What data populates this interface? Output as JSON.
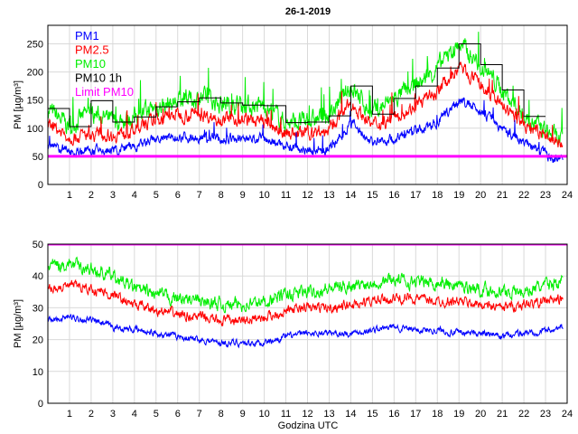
{
  "chart_data": [
    {
      "type": "line",
      "title": "26-1-2019",
      "ylabel": "PM [µg/m³]",
      "xlabel": "",
      "xlim": [
        0,
        24
      ],
      "ylim": [
        0,
        283
      ],
      "xticks": [
        1,
        2,
        3,
        4,
        5,
        6,
        7,
        8,
        9,
        10,
        11,
        12,
        13,
        14,
        15,
        16,
        17,
        18,
        19,
        20,
        21,
        22,
        23,
        24
      ],
      "yticks": [
        0,
        50,
        100,
        150,
        200,
        250
      ],
      "legend_position": "top-left",
      "series": [
        {
          "name": "PM1",
          "color": "#0000ff",
          "hourly_mean": [
            70,
            58,
            60,
            60,
            65,
            80,
            85,
            85,
            80,
            80,
            80,
            70,
            62,
            60,
            110,
            75,
            80,
            95,
            110,
            150,
            130,
            100,
            75,
            55
          ],
          "noise": 14
        },
        {
          "name": "PM2.5",
          "color": "#ff0000",
          "hourly_mean": [
            108,
            85,
            88,
            88,
            95,
            115,
            125,
            125,
            118,
            115,
            112,
            92,
            90,
            95,
            145,
            105,
            120,
            140,
            165,
            210,
            175,
            140,
            105,
            85
          ],
          "noise": 18
        },
        {
          "name": "PM10",
          "color": "#00ee00",
          "hourly_mean": [
            133,
            103,
            130,
            111,
            120,
            138,
            147,
            154,
            145,
            141,
            140,
            110,
            111,
            122,
            175,
            125,
            153,
            175,
            207,
            250,
            213,
            168,
            121,
            95
          ],
          "noise": 26
        },
        {
          "name": "PM10 1h",
          "color": "#000000",
          "step": true,
          "values": [
            135,
            103,
            149,
            111,
            120,
            138,
            147,
            154,
            145,
            141,
            140,
            110,
            111,
            122,
            175,
            125,
            153,
            175,
            207,
            250,
            213,
            168,
            121
          ]
        },
        {
          "name": "Limit PM10",
          "color": "#ff00ff",
          "constant": 50
        }
      ]
    },
    {
      "type": "line",
      "title": "",
      "ylabel": "PM [µg/m³]",
      "xlabel": "Godzina UTC",
      "xlim": [
        0,
        24
      ],
      "ylim": [
        0,
        50
      ],
      "xticks": [
        1,
        2,
        3,
        4,
        5,
        6,
        7,
        8,
        9,
        10,
        11,
        12,
        13,
        14,
        15,
        16,
        17,
        18,
        19,
        20,
        21,
        22,
        23,
        24
      ],
      "yticks": [
        0,
        10,
        20,
        30,
        40,
        50
      ],
      "series": [
        {
          "name": "PM1",
          "color": "#0000ff",
          "hourly_mean": [
            26,
            27,
            26,
            24,
            23,
            22,
            21,
            20,
            19,
            19,
            19,
            21,
            22,
            22,
            22,
            23,
            24,
            23,
            23,
            22,
            22,
            21,
            22,
            23
          ],
          "noise": 1.6
        },
        {
          "name": "PM2.5",
          "color": "#ff0000",
          "hourly_mean": [
            36,
            37,
            36,
            34,
            31,
            29,
            28,
            27,
            26,
            26,
            27,
            29,
            30,
            30,
            31,
            32,
            33,
            33,
            32,
            32,
            31,
            30,
            31,
            32
          ],
          "noise": 2.4
        },
        {
          "name": "PM10",
          "color": "#00ee00",
          "hourly_mean": [
            43,
            44,
            42,
            40,
            36,
            34,
            33,
            32,
            31,
            31,
            32,
            34,
            35,
            36,
            37,
            38,
            39,
            38,
            38,
            37,
            36,
            35,
            35,
            37
          ],
          "noise": 3.2
        },
        {
          "name": "Limit PM10",
          "color": "#ff00ff",
          "constant": 50
        }
      ]
    }
  ]
}
